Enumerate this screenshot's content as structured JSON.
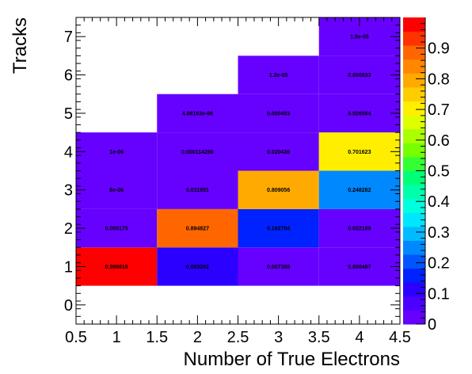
{
  "chart_data": {
    "type": "heatmap",
    "title": "",
    "xlabel": "Number of True Electrons",
    "ylabel": "Tracks",
    "xlim": [
      0.5,
      4.5
    ],
    "ylim": [
      -0.5,
      7.5
    ],
    "x_ticks": [
      "0.5",
      "1",
      "1.5",
      "2",
      "2.5",
      "3",
      "3.5",
      "4",
      "4.5"
    ],
    "y_ticks": [
      "0",
      "1",
      "2",
      "3",
      "4",
      "5",
      "6",
      "7"
    ],
    "colorbar": {
      "min": 0,
      "max": 1,
      "ticks": [
        "0",
        "0.1",
        "0.2",
        "0.3",
        "0.4",
        "0.5",
        "0.6",
        "0.7",
        "0.8",
        "0.9"
      ],
      "colors": [
        "#6600ff",
        "#4d00ff",
        "#2b00ff",
        "#0022ff",
        "#0055ff",
        "#0088ff",
        "#00bbff",
        "#00e6ff",
        "#00ffdd",
        "#00ffaa",
        "#00ff77",
        "#33ff33",
        "#77ff00",
        "#aaff00",
        "#ddff00",
        "#ffee00",
        "#ffcc00",
        "#ffaa00",
        "#ff8800",
        "#ff6600",
        "#ff3300",
        "#ff0000"
      ]
    },
    "cells": [
      {
        "x": 1,
        "y": 1,
        "value": 0.999815,
        "label": "0.999815"
      },
      {
        "x": 1,
        "y": 2,
        "value": 0.000175,
        "label": "0.000175"
      },
      {
        "x": 1,
        "y": 3,
        "value": 8e-06,
        "label": "8e-06"
      },
      {
        "x": 1,
        "y": 4,
        "value": 1e-06,
        "label": "1e-06"
      },
      {
        "x": 2,
        "y": 1,
        "value": 0.093202,
        "label": "0.093202"
      },
      {
        "x": 2,
        "y": 2,
        "value": 0.894827,
        "label": "0.894827"
      },
      {
        "x": 2,
        "y": 3,
        "value": 0.011851,
        "label": "0.011851"
      },
      {
        "x": 2,
        "y": 4,
        "value": 0.000114286,
        "label": "0.000114286"
      },
      {
        "x": 2,
        "y": 5,
        "value": 4.08163e-06,
        "label": "4.08163e-06"
      },
      {
        "x": 3,
        "y": 1,
        "value": 0.007388,
        "label": "0.007388"
      },
      {
        "x": 3,
        "y": 2,
        "value": 0.162704,
        "label": "0.162704"
      },
      {
        "x": 3,
        "y": 3,
        "value": 0.809056,
        "label": "0.809056"
      },
      {
        "x": 3,
        "y": 4,
        "value": 0.020436,
        "label": "0.020436"
      },
      {
        "x": 3,
        "y": 5,
        "value": 0.000403,
        "label": "0.000403"
      },
      {
        "x": 3,
        "y": 6,
        "value": 1.2e-05,
        "label": "1.2e-05"
      },
      {
        "x": 4,
        "y": 1,
        "value": 0.000487,
        "label": "0.000487"
      },
      {
        "x": 4,
        "y": 2,
        "value": 0.022189,
        "label": "0.022189"
      },
      {
        "x": 4,
        "y": 3,
        "value": 0.248282,
        "label": "0.248282"
      },
      {
        "x": 4,
        "y": 4,
        "value": 0.701623,
        "label": "0.701623"
      },
      {
        "x": 4,
        "y": 5,
        "value": 0.026564,
        "label": "0.026564"
      },
      {
        "x": 4,
        "y": 6,
        "value": 0.000833,
        "label": "0.000833"
      },
      {
        "x": 4,
        "y": 7,
        "value": 1.9e-05,
        "label": "1.9e-05"
      }
    ],
    "grid": false,
    "legend": "colorbar-right"
  }
}
